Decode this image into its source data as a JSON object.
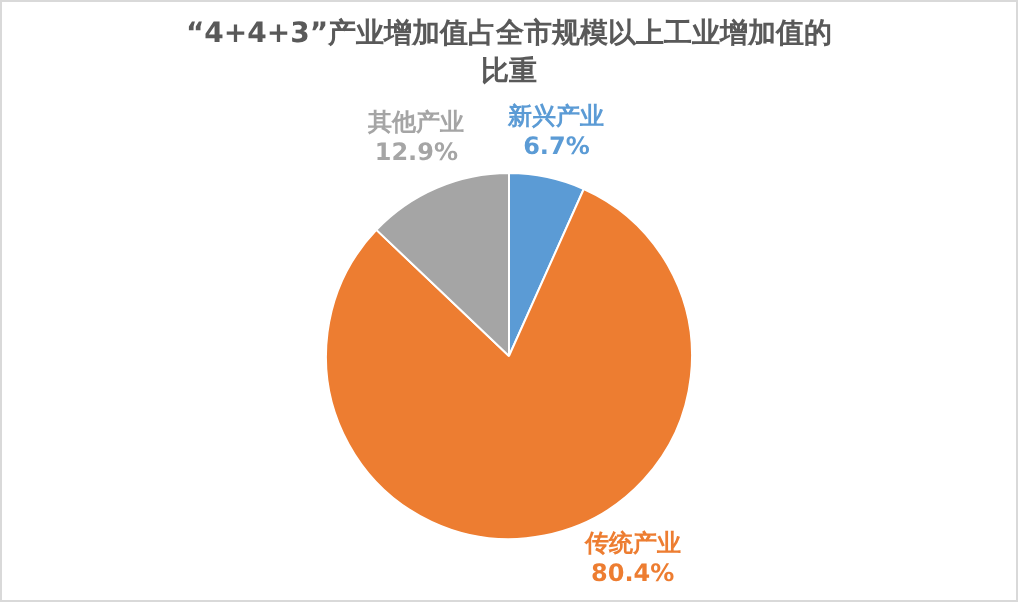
{
  "chart_data": {
    "type": "pie",
    "title": "“4+4+3”产业增加值占全市规模以上工业增加值的比重",
    "categories": [
      "新兴产业",
      "传统产业",
      "其他产业"
    ],
    "values": [
      6.7,
      80.4,
      12.9
    ],
    "colors": [
      "#5b9bd5",
      "#ed7d31",
      "#a5a5a5"
    ],
    "value_labels": [
      "6.7%",
      "80.4%",
      "12.9%"
    ],
    "legend": false
  }
}
